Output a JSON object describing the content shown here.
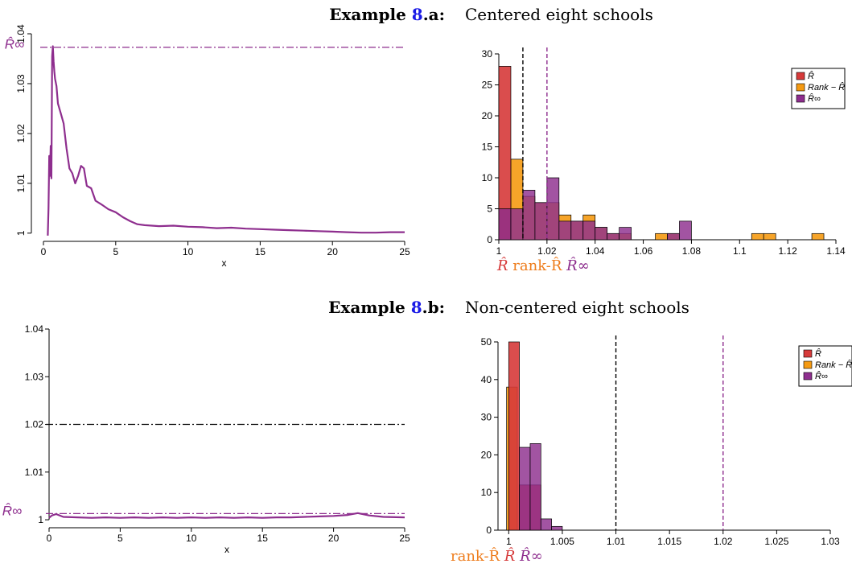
{
  "colors": {
    "rhat": "#d63a3a",
    "rank": "#f59a12",
    "rinf": "#8e2e8e",
    "rank_label": "#ee7c1b",
    "ink": "#000000"
  },
  "sections": [
    {
      "label_prefix": "Example ",
      "label_num": "8",
      "label_suffix": ".a:",
      "title": "Centered eight schools",
      "left_title_hint": "R̂∞",
      "bottom_labels": [
        "R̂",
        "rank-R̂",
        "R̂∞"
      ],
      "bottom_label_colors": [
        "rhat",
        "rank_label",
        "rinf"
      ]
    },
    {
      "label_prefix": "Example ",
      "label_num": "8",
      "label_suffix": ".b:",
      "title": "Non-centered eight schools",
      "left_title_hint": "R̂∞",
      "bottom_labels": [
        "rank-R̂",
        "R̂",
        "R̂∞"
      ],
      "bottom_label_colors": [
        "rank_label",
        "rhat",
        "rinf"
      ]
    }
  ],
  "legend": {
    "items": [
      {
        "label": "R̂",
        "color_key": "rhat"
      },
      {
        "label": "Rank − R̂",
        "color_key": "rank"
      },
      {
        "label": "R̂∞",
        "color_key": "rinf"
      }
    ]
  },
  "chart_data": [
    {
      "type": "line",
      "xlabel": "x",
      "xlim": [
        0,
        25
      ],
      "ylim": [
        0.999,
        1.04
      ],
      "xticks": [
        "0",
        "5",
        "10",
        "15",
        "20",
        "25"
      ],
      "yticks": [
        "1",
        "1.01",
        "1.02",
        "1.03",
        "1.04"
      ],
      "ytick_rotated": true,
      "reference_line": {
        "y": 1.0373,
        "style": "dashdot",
        "color_key": "rinf",
        "label": "R̂∞"
      },
      "series": [
        {
          "color_key": "rinf",
          "x": [
            0.3,
            0.35,
            0.4,
            0.45,
            0.5,
            0.55,
            0.6,
            0.65,
            0.7,
            0.75,
            0.8,
            0.9,
            1.0,
            1.2,
            1.4,
            1.6,
            1.8,
            2.0,
            2.2,
            2.4,
            2.6,
            2.8,
            3.0,
            3.3,
            3.6,
            4.0,
            4.5,
            5.0,
            5.5,
            6.0,
            6.5,
            7.0,
            8.0,
            9.0,
            10.0,
            11.0,
            12.0,
            13.0,
            14.0,
            15.0,
            16.0,
            17.0,
            18.0,
            19.0,
            20.0,
            21.0,
            22.0,
            23.0,
            24.0,
            25.0
          ],
          "y": [
            0.9995,
            1.005,
            1.0155,
            1.0115,
            1.0175,
            1.011,
            1.0355,
            1.0375,
            1.0345,
            1.0325,
            1.031,
            1.0295,
            1.026,
            1.024,
            1.022,
            1.017,
            1.013,
            1.012,
            1.01,
            1.0115,
            1.0135,
            1.013,
            1.0095,
            1.009,
            1.0065,
            1.0058,
            1.0048,
            1.0042,
            1.0032,
            1.0024,
            1.0018,
            1.0016,
            1.0014,
            1.0015,
            1.0013,
            1.0012,
            1.001,
            1.0011,
            1.0009,
            1.0008,
            1.0007,
            1.0006,
            1.0005,
            1.0004,
            1.0003,
            1.0002,
            1.0001,
            1.0001,
            1.0002,
            1.0002
          ]
        }
      ]
    },
    {
      "type": "bar",
      "xlim": [
        1,
        1.14
      ],
      "ylim": [
        0,
        30
      ],
      "bin_width": 0.005,
      "xticks": [
        "1",
        "1.02",
        "1.04",
        "1.06",
        "1.08",
        "1.1",
        "1.12",
        "1.14"
      ],
      "yticks": [
        "0",
        "5",
        "10",
        "15",
        "20",
        "25",
        "30"
      ],
      "vlines": [
        {
          "x": 1.01,
          "color_key": "ink"
        },
        {
          "x": 1.02,
          "color_key": "rinf"
        }
      ],
      "series": [
        {
          "name": "R̂",
          "color_key": "rhat",
          "x": [
            1.0
          ],
          "values": [
            28
          ]
        },
        {
          "name": "Rank − R̂",
          "color_key": "rank",
          "x": [
            1.0,
            1.005,
            1.01,
            1.015,
            1.02,
            1.025,
            1.03,
            1.035,
            1.04,
            1.045,
            1.05,
            1.065,
            1.07,
            1.105,
            1.11,
            1.13
          ],
          "values": [
            5,
            13,
            7,
            6,
            6,
            4,
            3,
            4,
            2,
            1,
            1,
            1,
            1,
            1,
            1,
            1
          ]
        },
        {
          "name": "R̂∞",
          "color_key": "rinf",
          "x": [
            1.0,
            1.005,
            1.01,
            1.015,
            1.02,
            1.025,
            1.03,
            1.035,
            1.04,
            1.045,
            1.05,
            1.07,
            1.075
          ],
          "values": [
            5,
            5,
            8,
            6,
            10,
            3,
            3,
            3,
            2,
            1,
            2,
            1,
            3
          ]
        }
      ]
    },
    {
      "type": "line",
      "xlabel": "x",
      "xlim": [
        0,
        25
      ],
      "ylim": [
        0.999,
        1.04
      ],
      "xticks": [
        "0",
        "5",
        "10",
        "15",
        "20",
        "25"
      ],
      "yticks": [
        "1",
        "1.01",
        "1.02",
        "1.03",
        "1.04"
      ],
      "reference_lines": [
        {
          "y": 1.02,
          "style": "dashdot",
          "color_key": "ink"
        },
        {
          "y": 1.0013,
          "style": "dashdot",
          "color_key": "rinf",
          "label": "R̂∞"
        }
      ],
      "series": [
        {
          "color_key": "rinf",
          "x": [
            0,
            0.2,
            0.5,
            1,
            2,
            3,
            4,
            5,
            6,
            7,
            8,
            9,
            10,
            11,
            12,
            13,
            14,
            15,
            16,
            17,
            18,
            19,
            20,
            21,
            21.7,
            22.5,
            23.5,
            25
          ],
          "y": [
            1.0004,
            1.0009,
            1.0012,
            1.0006,
            1.0005,
            1.0004,
            1.0005,
            1.0004,
            1.0005,
            1.0004,
            1.0005,
            1.0004,
            1.0005,
            1.0004,
            1.0005,
            1.0004,
            1.0005,
            1.0004,
            1.0005,
            1.0005,
            1.0006,
            1.0007,
            1.0008,
            1.001,
            1.0014,
            1.0009,
            1.0006,
            1.0005
          ]
        }
      ]
    },
    {
      "type": "bar",
      "xlim": [
        0.999,
        1.03
      ],
      "ylim": [
        0,
        50
      ],
      "bin_width": 0.001,
      "xticks": [
        "1",
        "1.005",
        "1.01",
        "1.015",
        "1.02",
        "1.025",
        "1.03"
      ],
      "yticks": [
        "0",
        "10",
        "20",
        "30",
        "40",
        "50"
      ],
      "vlines": [
        {
          "x": 1.01,
          "color_key": "ink"
        },
        {
          "x": 1.02,
          "color_key": "rinf"
        }
      ],
      "series": [
        {
          "name": "R̂",
          "color_key": "rhat",
          "x": [
            1.0,
            1.001,
            1.002
          ],
          "values": [
            50,
            12,
            12
          ]
        },
        {
          "name": "Rank − R̂",
          "color_key": "rank",
          "x": [
            0.9998
          ],
          "values": [
            38
          ]
        },
        {
          "name": "R̂∞",
          "color_key": "rinf",
          "x": [
            1.001,
            1.002,
            1.003,
            1.004
          ],
          "values": [
            22,
            23,
            3,
            1
          ]
        }
      ]
    }
  ]
}
